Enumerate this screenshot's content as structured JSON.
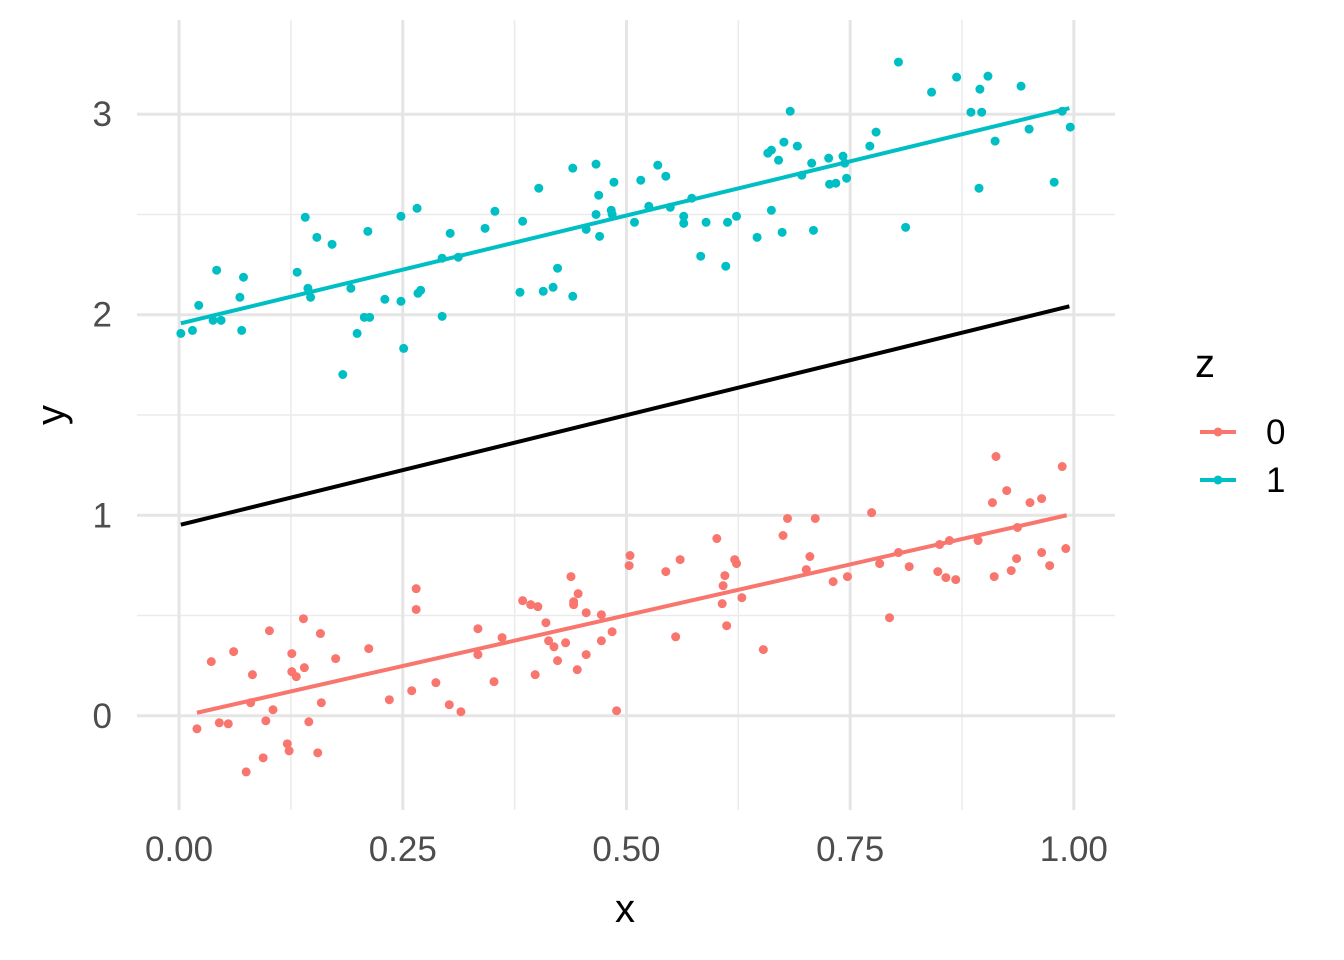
{
  "chart_data": {
    "type": "scatter",
    "title": "",
    "xlabel": "x",
    "ylabel": "y",
    "xlim": [
      -0.047,
      1.046
    ],
    "ylim": [
      -0.47,
      3.47
    ],
    "grid": true,
    "x_ticks": [
      0,
      0.25,
      0.5,
      0.75,
      1
    ],
    "x_tick_labels": [
      "0.00",
      "0.25",
      "0.50",
      "0.75",
      "1.00"
    ],
    "y_ticks": [
      0,
      1,
      2,
      3
    ],
    "y_tick_labels": [
      "0",
      "1",
      "2",
      "3"
    ],
    "legend": {
      "title": "z",
      "placement": "right",
      "entries": [
        "0",
        "1"
      ]
    },
    "series": [
      {
        "name": "0",
        "color": "#F8766D",
        "points": [
          [
            0.02,
            -0.065
          ],
          [
            0.036,
            0.27
          ],
          [
            0.045,
            -0.035
          ],
          [
            0.055,
            -0.04
          ],
          [
            0.061,
            0.32
          ],
          [
            0.075,
            -0.28
          ],
          [
            0.082,
            0.205
          ],
          [
            0.08,
            0.065
          ],
          [
            0.094,
            -0.21
          ],
          [
            0.097,
            -0.025
          ],
          [
            0.101,
            0.424
          ],
          [
            0.105,
            0.03
          ],
          [
            0.121,
            -0.14
          ],
          [
            0.123,
            -0.175
          ],
          [
            0.126,
            0.31
          ],
          [
            0.126,
            0.22
          ],
          [
            0.131,
            0.195
          ],
          [
            0.139,
            0.484
          ],
          [
            0.14,
            0.24
          ],
          [
            0.145,
            -0.03
          ],
          [
            0.155,
            -0.185
          ],
          [
            0.158,
            0.41
          ],
          [
            0.159,
            0.065
          ],
          [
            0.175,
            0.285
          ],
          [
            0.212,
            0.335
          ],
          [
            0.235,
            0.08
          ],
          [
            0.26,
            0.125
          ],
          [
            0.265,
            0.634
          ],
          [
            0.265,
            0.53
          ],
          [
            0.287,
            0.165
          ],
          [
            0.302,
            0.055
          ],
          [
            0.315,
            0.02
          ],
          [
            0.334,
            0.434
          ],
          [
            0.334,
            0.305
          ],
          [
            0.352,
            0.17
          ],
          [
            0.361,
            0.39
          ],
          [
            0.384,
            0.574
          ],
          [
            0.393,
            0.554
          ],
          [
            0.398,
            0.205
          ],
          [
            0.401,
            0.544
          ],
          [
            0.41,
            0.464
          ],
          [
            0.413,
            0.374
          ],
          [
            0.419,
            0.344
          ],
          [
            0.423,
            0.275
          ],
          [
            0.432,
            0.364
          ],
          [
            0.438,
            0.694
          ],
          [
            0.441,
            0.569
          ],
          [
            0.441,
            0.554
          ],
          [
            0.446,
            0.609
          ],
          [
            0.445,
            0.23
          ],
          [
            0.455,
            0.514
          ],
          [
            0.455,
            0.305
          ],
          [
            0.472,
            0.504
          ],
          [
            0.472,
            0.374
          ],
          [
            0.484,
            0.419
          ],
          [
            0.489,
            0.025
          ],
          [
            0.503,
            0.749
          ],
          [
            0.504,
            0.799
          ],
          [
            0.544,
            0.719
          ],
          [
            0.555,
            0.394
          ],
          [
            0.56,
            0.779
          ],
          [
            0.601,
            0.884
          ],
          [
            0.607,
            0.559
          ],
          [
            0.608,
            0.649
          ],
          [
            0.61,
            0.699
          ],
          [
            0.612,
            0.449
          ],
          [
            0.621,
            0.779
          ],
          [
            0.623,
            0.759
          ],
          [
            0.629,
            0.589
          ],
          [
            0.653,
            0.33
          ],
          [
            0.675,
            0.899
          ],
          [
            0.68,
            0.984
          ],
          [
            0.701,
            0.729
          ],
          [
            0.705,
            0.794
          ],
          [
            0.711,
            0.984
          ],
          [
            0.731,
            0.669
          ],
          [
            0.747,
            0.694
          ],
          [
            0.774,
            1.013
          ],
          [
            0.783,
            0.759
          ],
          [
            0.794,
            0.489
          ],
          [
            0.804,
            0.814
          ],
          [
            0.816,
            0.744
          ],
          [
            0.848,
            0.719
          ],
          [
            0.85,
            0.854
          ],
          [
            0.857,
            0.689
          ],
          [
            0.868,
            0.679
          ],
          [
            0.861,
            0.874
          ],
          [
            0.893,
            0.874
          ],
          [
            0.909,
            1.063
          ],
          [
            0.911,
            0.694
          ],
          [
            0.913,
            1.293
          ],
          [
            0.925,
            1.123
          ],
          [
            0.93,
            0.724
          ],
          [
            0.936,
            0.784
          ],
          [
            0.937,
            0.939
          ],
          [
            0.951,
            1.063
          ],
          [
            0.964,
            1.083
          ],
          [
            0.973,
            0.749
          ],
          [
            0.987,
            1.243
          ],
          [
            0.991,
            0.834
          ],
          [
            0.964,
            0.814
          ]
        ],
        "fit_line": [
          [
            0.02,
            0.015
          ],
          [
            0.992,
            1.0
          ]
        ]
      },
      {
        "name": "1",
        "color": "#00BFC4",
        "points": [
          [
            0.002,
            1.907
          ],
          [
            0.015,
            1.922
          ],
          [
            0.022,
            2.047
          ],
          [
            0.038,
            1.972
          ],
          [
            0.042,
            2.222
          ],
          [
            0.047,
            1.972
          ],
          [
            0.068,
            2.087
          ],
          [
            0.07,
            1.922
          ],
          [
            0.072,
            2.187
          ],
          [
            0.132,
            2.212
          ],
          [
            0.141,
            2.486
          ],
          [
            0.144,
            2.132
          ],
          [
            0.147,
            2.087
          ],
          [
            0.154,
            2.386
          ],
          [
            0.171,
            2.351
          ],
          [
            0.183,
            1.702
          ],
          [
            0.192,
            2.132
          ],
          [
            0.199,
            1.907
          ],
          [
            0.207,
            1.987
          ],
          [
            0.211,
            2.416
          ],
          [
            0.213,
            1.987
          ],
          [
            0.23,
            2.077
          ],
          [
            0.248,
            2.491
          ],
          [
            0.248,
            2.067
          ],
          [
            0.251,
            1.832
          ],
          [
            0.266,
            2.531
          ],
          [
            0.267,
            2.107
          ],
          [
            0.27,
            2.122
          ],
          [
            0.294,
            1.992
          ],
          [
            0.294,
            2.282
          ],
          [
            0.303,
            2.406
          ],
          [
            0.312,
            2.287
          ],
          [
            0.342,
            2.431
          ],
          [
            0.353,
            2.516
          ],
          [
            0.381,
            2.112
          ],
          [
            0.384,
            2.466
          ],
          [
            0.402,
            2.631
          ],
          [
            0.407,
            2.117
          ],
          [
            0.418,
            2.137
          ],
          [
            0.423,
            2.232
          ],
          [
            0.44,
            2.092
          ],
          [
            0.44,
            2.731
          ],
          [
            0.455,
            2.426
          ],
          [
            0.466,
            2.751
          ],
          [
            0.466,
            2.5
          ],
          [
            0.469,
            2.596
          ],
          [
            0.47,
            2.391
          ],
          [
            0.483,
            2.521
          ],
          [
            0.484,
            2.501
          ],
          [
            0.486,
            2.661
          ],
          [
            0.509,
            2.461
          ],
          [
            0.516,
            2.671
          ],
          [
            0.525,
            2.541
          ],
          [
            0.535,
            2.746
          ],
          [
            0.544,
            2.691
          ],
          [
            0.549,
            2.536
          ],
          [
            0.564,
            2.456
          ],
          [
            0.564,
            2.491
          ],
          [
            0.573,
            2.581
          ],
          [
            0.583,
            2.292
          ],
          [
            0.589,
            2.461
          ],
          [
            0.611,
            2.242
          ],
          [
            0.613,
            2.461
          ],
          [
            0.623,
            2.491
          ],
          [
            0.646,
            2.386
          ],
          [
            0.658,
            2.806
          ],
          [
            0.662,
            2.821
          ],
          [
            0.662,
            2.521
          ],
          [
            0.67,
            2.771
          ],
          [
            0.674,
            2.411
          ],
          [
            0.676,
            2.861
          ],
          [
            0.683,
            3.015
          ],
          [
            0.691,
            2.841
          ],
          [
            0.696,
            2.696
          ],
          [
            0.707,
            2.756
          ],
          [
            0.709,
            2.421
          ],
          [
            0.726,
            2.781
          ],
          [
            0.727,
            2.651
          ],
          [
            0.734,
            2.656
          ],
          [
            0.742,
            2.791
          ],
          [
            0.744,
            2.756
          ],
          [
            0.746,
            2.681
          ],
          [
            0.772,
            2.841
          ],
          [
            0.779,
            2.911
          ],
          [
            0.804,
            3.26
          ],
          [
            0.812,
            2.436
          ],
          [
            0.841,
            3.11
          ],
          [
            0.869,
            3.185
          ],
          [
            0.885,
            3.01
          ],
          [
            0.894,
            2.631
          ],
          [
            0.895,
            3.125
          ],
          [
            0.897,
            3.01
          ],
          [
            0.904,
            3.19
          ],
          [
            0.912,
            2.866
          ],
          [
            0.941,
            3.14
          ],
          [
            0.95,
            2.926
          ],
          [
            0.978,
            2.661
          ],
          [
            0.987,
            3.015
          ],
          [
            0.996,
            2.936
          ]
        ],
        "fit_line": [
          [
            0.002,
            1.957
          ],
          [
            0.995,
            3.03
          ]
        ]
      }
    ],
    "overall_line": {
      "color": "#000000",
      "points": [
        [
          0.002,
          0.953
        ],
        [
          0.995,
          2.042
        ]
      ]
    }
  }
}
